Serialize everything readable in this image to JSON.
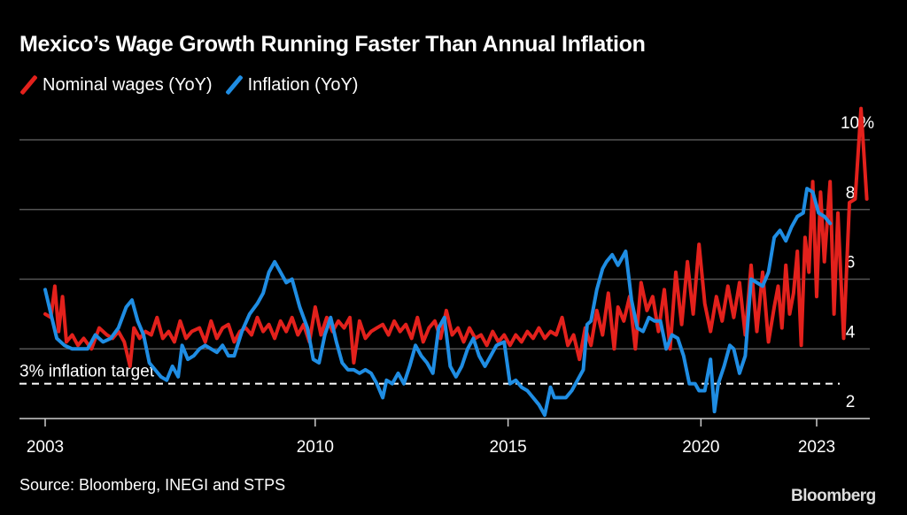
{
  "chart_data": {
    "type": "line",
    "title": "Mexico’s Wage Growth Running Faster Than Annual Inflation",
    "xlabel": "",
    "ylabel": "",
    "ylim": [
      2,
      10.5
    ],
    "xlim": [
      2003,
      2024.4
    ],
    "y_ticks": [
      2,
      4,
      6,
      8,
      10
    ],
    "y_tick_labels": [
      "2",
      "4",
      "6",
      "8",
      "10%"
    ],
    "x_ticks": [
      2003,
      2010,
      2015,
      2020,
      2023
    ],
    "x_tick_labels": [
      "2003",
      "2010",
      "2015",
      "2020",
      "2023"
    ],
    "grid": true,
    "legend_position": "top-left",
    "reference_line": {
      "value": 3,
      "label": "3% inflation target",
      "style": "dashed"
    },
    "series": [
      {
        "name": "Nominal wages (YoY)",
        "color": "#e3211c",
        "points": [
          [
            2003.0,
            5.0
          ],
          [
            2003.15,
            4.9
          ],
          [
            2003.25,
            5.8
          ],
          [
            2003.35,
            4.5
          ],
          [
            2003.45,
            5.5
          ],
          [
            2003.55,
            4.2
          ],
          [
            2003.7,
            4.4
          ],
          [
            2003.85,
            4.1
          ],
          [
            2004.0,
            4.3
          ],
          [
            2004.2,
            4.0
          ],
          [
            2004.4,
            4.6
          ],
          [
            2004.6,
            4.4
          ],
          [
            2004.75,
            4.3
          ],
          [
            2004.9,
            4.5
          ],
          [
            2005.05,
            4.2
          ],
          [
            2005.2,
            3.5
          ],
          [
            2005.3,
            4.6
          ],
          [
            2005.45,
            4.3
          ],
          [
            2005.6,
            4.5
          ],
          [
            2005.75,
            4.4
          ],
          [
            2005.9,
            4.9
          ],
          [
            2006.05,
            4.3
          ],
          [
            2006.2,
            4.5
          ],
          [
            2006.35,
            4.2
          ],
          [
            2006.5,
            4.8
          ],
          [
            2006.65,
            4.3
          ],
          [
            2006.8,
            4.5
          ],
          [
            2007.0,
            4.6
          ],
          [
            2007.15,
            4.2
          ],
          [
            2007.3,
            4.8
          ],
          [
            2007.45,
            4.3
          ],
          [
            2007.6,
            4.6
          ],
          [
            2007.75,
            4.7
          ],
          [
            2007.9,
            4.2
          ],
          [
            2008.05,
            4.5
          ],
          [
            2008.2,
            4.6
          ],
          [
            2008.35,
            4.4
          ],
          [
            2008.5,
            4.9
          ],
          [
            2008.65,
            4.5
          ],
          [
            2008.8,
            4.7
          ],
          [
            2008.95,
            4.3
          ],
          [
            2009.1,
            4.8
          ],
          [
            2009.25,
            4.5
          ],
          [
            2009.4,
            4.9
          ],
          [
            2009.55,
            4.4
          ],
          [
            2009.7,
            4.7
          ],
          [
            2009.85,
            4.2
          ],
          [
            2010.0,
            5.2
          ],
          [
            2010.15,
            4.4
          ],
          [
            2010.3,
            4.9
          ],
          [
            2010.45,
            4.5
          ],
          [
            2010.6,
            4.8
          ],
          [
            2010.75,
            4.6
          ],
          [
            2010.9,
            4.9
          ],
          [
            2011.0,
            3.6
          ],
          [
            2011.15,
            4.8
          ],
          [
            2011.3,
            4.3
          ],
          [
            2011.45,
            4.5
          ],
          [
            2011.6,
            4.6
          ],
          [
            2011.75,
            4.7
          ],
          [
            2011.9,
            4.4
          ],
          [
            2012.05,
            4.8
          ],
          [
            2012.2,
            4.5
          ],
          [
            2012.35,
            4.7
          ],
          [
            2012.5,
            4.3
          ],
          [
            2012.65,
            4.9
          ],
          [
            2012.8,
            4.2
          ],
          [
            2012.95,
            4.6
          ],
          [
            2013.1,
            4.8
          ],
          [
            2013.25,
            4.3
          ],
          [
            2013.4,
            5.1
          ],
          [
            2013.55,
            4.4
          ],
          [
            2013.7,
            4.6
          ],
          [
            2013.85,
            4.2
          ],
          [
            2014.0,
            4.6
          ],
          [
            2014.15,
            4.3
          ],
          [
            2014.3,
            4.4
          ],
          [
            2014.45,
            4.1
          ],
          [
            2014.6,
            4.5
          ],
          [
            2014.75,
            4.2
          ],
          [
            2014.9,
            4.4
          ],
          [
            2015.05,
            4.1
          ],
          [
            2015.2,
            4.4
          ],
          [
            2015.35,
            4.2
          ],
          [
            2015.5,
            4.5
          ],
          [
            2015.65,
            4.3
          ],
          [
            2015.8,
            4.6
          ],
          [
            2015.95,
            4.3
          ],
          [
            2016.1,
            4.5
          ],
          [
            2016.25,
            4.4
          ],
          [
            2016.4,
            4.9
          ],
          [
            2016.55,
            4.1
          ],
          [
            2016.7,
            4.4
          ],
          [
            2016.85,
            3.7
          ],
          [
            2017.0,
            4.6
          ],
          [
            2017.15,
            4.1
          ],
          [
            2017.3,
            5.1
          ],
          [
            2017.45,
            4.4
          ],
          [
            2017.6,
            5.6
          ],
          [
            2017.75,
            4.0
          ],
          [
            2017.85,
            5.2
          ],
          [
            2018.0,
            4.8
          ],
          [
            2018.15,
            5.5
          ],
          [
            2018.3,
            4.0
          ],
          [
            2018.45,
            5.9
          ],
          [
            2018.6,
            5.1
          ],
          [
            2018.75,
            5.5
          ],
          [
            2018.9,
            4.5
          ],
          [
            2019.05,
            5.7
          ],
          [
            2019.2,
            4.0
          ],
          [
            2019.35,
            6.2
          ],
          [
            2019.5,
            4.7
          ],
          [
            2019.65,
            6.5
          ],
          [
            2019.8,
            5.0
          ],
          [
            2019.95,
            7.0
          ],
          [
            2020.1,
            5.3
          ],
          [
            2020.25,
            4.5
          ],
          [
            2020.4,
            5.5
          ],
          [
            2020.55,
            4.8
          ],
          [
            2020.7,
            5.8
          ],
          [
            2020.85,
            4.9
          ],
          [
            2021.0,
            5.9
          ],
          [
            2021.15,
            4.4
          ],
          [
            2021.3,
            6.4
          ],
          [
            2021.45,
            4.5
          ],
          [
            2021.6,
            6.2
          ],
          [
            2021.75,
            4.2
          ],
          [
            2021.9,
            5.2
          ],
          [
            2022.0,
            5.8
          ],
          [
            2022.1,
            4.6
          ],
          [
            2022.2,
            6.4
          ],
          [
            2022.3,
            5.0
          ],
          [
            2022.4,
            5.6
          ],
          [
            2022.5,
            6.8
          ],
          [
            2022.6,
            4.1
          ],
          [
            2022.7,
            7.2
          ],
          [
            2022.8,
            6.2
          ],
          [
            2022.9,
            8.8
          ],
          [
            2023.0,
            5.5
          ],
          [
            2023.1,
            8.5
          ],
          [
            2023.2,
            6.5
          ],
          [
            2023.35,
            8.8
          ],
          [
            2023.45,
            5.0
          ],
          [
            2023.55,
            7.9
          ],
          [
            2023.7,
            4.3
          ],
          [
            2023.85,
            8.2
          ],
          [
            2024.0,
            8.3
          ],
          [
            2024.15,
            10.9
          ],
          [
            2024.3,
            8.3
          ]
        ]
      },
      {
        "name": "Inflation (YoY)",
        "color": "#1f8de3",
        "points": [
          [
            2003.0,
            5.7
          ],
          [
            2003.15,
            5.0
          ],
          [
            2003.3,
            4.3
          ],
          [
            2003.5,
            4.1
          ],
          [
            2003.7,
            4.0
          ],
          [
            2003.9,
            4.0
          ],
          [
            2004.1,
            4.0
          ],
          [
            2004.3,
            4.4
          ],
          [
            2004.5,
            4.2
          ],
          [
            2004.7,
            4.3
          ],
          [
            2004.9,
            4.6
          ],
          [
            2005.1,
            5.2
          ],
          [
            2005.25,
            5.4
          ],
          [
            2005.4,
            4.8
          ],
          [
            2005.55,
            4.4
          ],
          [
            2005.7,
            3.6
          ],
          [
            2005.85,
            3.4
          ],
          [
            2006.0,
            3.2
          ],
          [
            2006.15,
            3.1
          ],
          [
            2006.3,
            3.5
          ],
          [
            2006.45,
            3.2
          ],
          [
            2006.55,
            4.1
          ],
          [
            2006.7,
            3.7
          ],
          [
            2006.85,
            3.8
          ],
          [
            2007.0,
            4.0
          ],
          [
            2007.15,
            4.1
          ],
          [
            2007.3,
            4.0
          ],
          [
            2007.45,
            3.9
          ],
          [
            2007.6,
            4.1
          ],
          [
            2007.75,
            3.8
          ],
          [
            2007.9,
            3.8
          ],
          [
            2008.1,
            4.5
          ],
          [
            2008.3,
            5.0
          ],
          [
            2008.5,
            5.3
          ],
          [
            2008.65,
            5.6
          ],
          [
            2008.8,
            6.2
          ],
          [
            2008.95,
            6.5
          ],
          [
            2009.1,
            6.2
          ],
          [
            2009.25,
            5.9
          ],
          [
            2009.4,
            6.0
          ],
          [
            2009.6,
            5.2
          ],
          [
            2009.8,
            4.6
          ],
          [
            2009.95,
            3.7
          ],
          [
            2010.1,
            3.6
          ],
          [
            2010.25,
            4.4
          ],
          [
            2010.4,
            4.9
          ],
          [
            2010.55,
            4.2
          ],
          [
            2010.7,
            3.6
          ],
          [
            2010.85,
            3.4
          ],
          [
            2011.0,
            3.4
          ],
          [
            2011.15,
            3.3
          ],
          [
            2011.3,
            3.4
          ],
          [
            2011.45,
            3.3
          ],
          [
            2011.6,
            3.0
          ],
          [
            2011.75,
            2.6
          ],
          [
            2011.85,
            3.1
          ],
          [
            2012.0,
            3.0
          ],
          [
            2012.15,
            3.3
          ],
          [
            2012.3,
            3.0
          ],
          [
            2012.45,
            3.5
          ],
          [
            2012.6,
            4.1
          ],
          [
            2012.75,
            3.8
          ],
          [
            2012.9,
            3.6
          ],
          [
            2013.05,
            3.3
          ],
          [
            2013.2,
            4.6
          ],
          [
            2013.35,
            4.9
          ],
          [
            2013.5,
            3.5
          ],
          [
            2013.65,
            3.2
          ],
          [
            2013.8,
            3.5
          ],
          [
            2013.95,
            4.0
          ],
          [
            2014.1,
            4.3
          ],
          [
            2014.25,
            3.8
          ],
          [
            2014.4,
            3.5
          ],
          [
            2014.55,
            3.8
          ],
          [
            2014.7,
            4.1
          ],
          [
            2014.9,
            4.2
          ],
          [
            2015.05,
            3.0
          ],
          [
            2015.2,
            3.1
          ],
          [
            2015.35,
            2.9
          ],
          [
            2015.5,
            2.8
          ],
          [
            2015.65,
            2.6
          ],
          [
            2015.8,
            2.4
          ],
          [
            2015.95,
            2.1
          ],
          [
            2016.1,
            2.9
          ],
          [
            2016.2,
            2.6
          ],
          [
            2016.35,
            2.6
          ],
          [
            2016.5,
            2.6
          ],
          [
            2016.65,
            2.8
          ],
          [
            2016.8,
            3.1
          ],
          [
            2016.95,
            3.4
          ],
          [
            2017.05,
            4.7
          ],
          [
            2017.15,
            4.8
          ],
          [
            2017.3,
            5.7
          ],
          [
            2017.45,
            6.3
          ],
          [
            2017.55,
            6.5
          ],
          [
            2017.7,
            6.7
          ],
          [
            2017.85,
            6.4
          ],
          [
            2017.95,
            6.6
          ],
          [
            2018.05,
            6.8
          ],
          [
            2018.2,
            5.4
          ],
          [
            2018.35,
            4.6
          ],
          [
            2018.5,
            4.5
          ],
          [
            2018.65,
            4.9
          ],
          [
            2018.8,
            4.8
          ],
          [
            2018.95,
            4.8
          ],
          [
            2019.1,
            4.0
          ],
          [
            2019.25,
            4.4
          ],
          [
            2019.4,
            4.3
          ],
          [
            2019.55,
            3.8
          ],
          [
            2019.7,
            3.0
          ],
          [
            2019.85,
            3.0
          ],
          [
            2019.95,
            2.8
          ],
          [
            2020.1,
            2.8
          ],
          [
            2020.25,
            3.7
          ],
          [
            2020.35,
            2.2
          ],
          [
            2020.45,
            3.0
          ],
          [
            2020.6,
            3.5
          ],
          [
            2020.75,
            4.1
          ],
          [
            2020.85,
            4.0
          ],
          [
            2021.0,
            3.3
          ],
          [
            2021.15,
            3.8
          ],
          [
            2021.3,
            6.0
          ],
          [
            2021.45,
            5.9
          ],
          [
            2021.6,
            5.8
          ],
          [
            2021.75,
            6.2
          ],
          [
            2021.9,
            7.2
          ],
          [
            2022.05,
            7.4
          ],
          [
            2022.2,
            7.1
          ],
          [
            2022.35,
            7.5
          ],
          [
            2022.5,
            7.8
          ],
          [
            2022.65,
            7.9
          ],
          [
            2022.75,
            8.6
          ],
          [
            2022.9,
            8.5
          ],
          [
            2023.05,
            7.9
          ],
          [
            2023.2,
            7.8
          ],
          [
            2023.35,
            7.6
          ]
        ]
      }
    ]
  },
  "header": {
    "title": "Mexico’s Wage Growth Running Faster Than Annual Inflation",
    "legend": [
      "Nominal wages (YoY)",
      "Inflation (YoY)"
    ]
  },
  "footer": {
    "source": "Source: Bloomberg, INEGI and STPS",
    "logo": "Bloomberg"
  }
}
